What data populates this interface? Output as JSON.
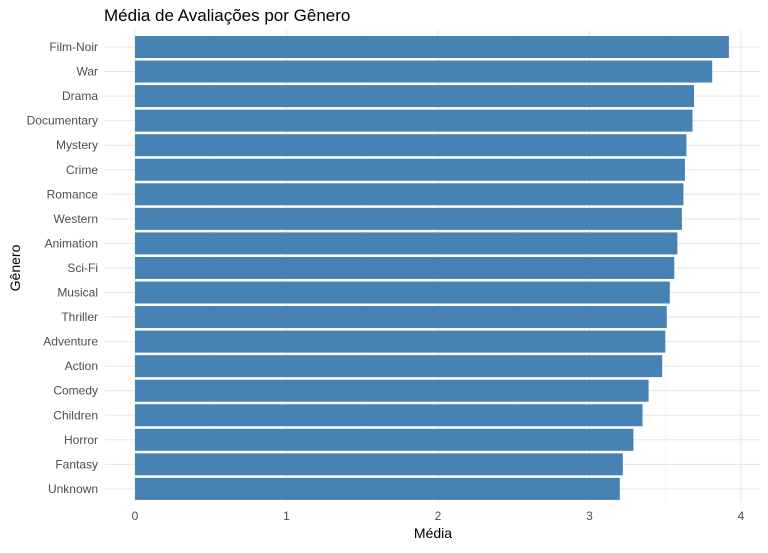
{
  "chart_data": {
    "type": "bar",
    "orientation": "horizontal",
    "title": "Média de Avaliações por Gênero",
    "xlabel": "Média",
    "ylabel": "Gênero",
    "xlim": [
      0,
      4.05
    ],
    "xticks": [
      0,
      1,
      2,
      3,
      4
    ],
    "grid": true,
    "bar_color": "#4682B4",
    "categories": [
      "Film-Noir",
      "War",
      "Drama",
      "Documentary",
      "Mystery",
      "Crime",
      "Romance",
      "Western",
      "Animation",
      "Sci-Fi",
      "Musical",
      "Thriller",
      "Adventure",
      "Action",
      "Comedy",
      "Children",
      "Horror",
      "Fantasy",
      "Unknown"
    ],
    "values": [
      3.92,
      3.81,
      3.69,
      3.68,
      3.64,
      3.63,
      3.62,
      3.61,
      3.58,
      3.56,
      3.53,
      3.51,
      3.5,
      3.48,
      3.39,
      3.35,
      3.29,
      3.22,
      3.2
    ]
  }
}
